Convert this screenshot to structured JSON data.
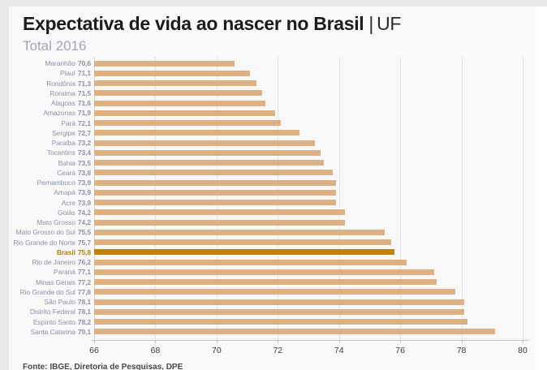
{
  "page": {
    "title_main": "Expectativa de vida ao nascer no Brasil",
    "title_separator": "|",
    "title_suffix": "UF",
    "subtitle": "Total 2016",
    "source": "Fonte: IBGE, Diretoria de Pesquisas, DPE"
  },
  "colors": {
    "bar_default": "#ddb184",
    "bar_highlight": "#bd830f",
    "label_default": "#8a94a8",
    "label_highlight": "#b5810f",
    "subtitle_text": "#a8a4b4",
    "axis_text": "#3c3c3c",
    "gridline": "#e3e3e3",
    "card_background": "#f9f9f9",
    "page_edge": "#e9e9e9"
  },
  "chart_data": {
    "type": "bar",
    "orientation": "horizontal",
    "title": "Expectativa de vida ao nascer no Brasil | UF",
    "subtitle": "Total 2016",
    "xlabel": "",
    "ylabel": "",
    "xlim": [
      66,
      80
    ],
    "xticks": [
      66,
      68,
      70,
      72,
      74,
      76,
      78,
      80
    ],
    "grid": true,
    "legend": false,
    "highlight_category": "Brasil",
    "decimal_separator": ",",
    "categories": [
      "Maranhão",
      "Piauí",
      "Rondônia",
      "Roraima",
      "Alagoas",
      "Amazonas",
      "Pará",
      "Sergipe",
      "Paraíba",
      "Tocantins",
      "Bahia",
      "Ceará",
      "Pernambuco",
      "Amapá",
      "Acre",
      "Goiás",
      "Mato Grosso",
      "Mato Grosso do Sul",
      "Rio Grande do Norte",
      "Brasil",
      "Rio de Janeiro",
      "Paraná",
      "Minas Gerais",
      "Rio Grande do Sul",
      "São Paulo",
      "Distrito Federal",
      "Espírito Santo",
      "Santa Catarina"
    ],
    "values": [
      70.6,
      71.1,
      71.3,
      71.5,
      71.6,
      71.9,
      72.1,
      72.7,
      73.2,
      73.4,
      73.5,
      73.8,
      73.9,
      73.9,
      73.9,
      74.2,
      74.2,
      75.5,
      75.7,
      75.8,
      76.2,
      77.1,
      77.2,
      77.8,
      78.1,
      78.1,
      78.2,
      79.1
    ],
    "value_labels": [
      "70,6",
      "71,1",
      "71,3",
      "71,5",
      "71,6",
      "71,9",
      "72,1",
      "72,7",
      "73,2",
      "73,4",
      "73,5",
      "73,8",
      "73,9",
      "73,9",
      "73,9",
      "74,2",
      "74,2",
      "75,5",
      "75,7",
      "75,8",
      "76,2",
      "77,1",
      "77,2",
      "77,8",
      "78,1",
      "78,1",
      "78,2",
      "79,1"
    ]
  }
}
